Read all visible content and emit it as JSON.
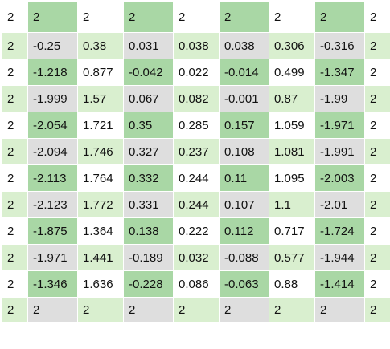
{
  "colors": {
    "white": "#ffffff",
    "light_gray": "#dedede",
    "light_green": "#d9efcf",
    "green": "#a9d7a5"
  },
  "grid": {
    "rows": [
      [
        "2",
        "2",
        "2",
        "2",
        "2",
        "2",
        "2",
        "2",
        "2"
      ],
      [
        "2",
        "-0.25",
        "0.38",
        "0.031",
        "0.038",
        "0.038",
        "0.306",
        "-0.316",
        "2"
      ],
      [
        "2",
        "-1.218",
        "0.877",
        "-0.042",
        "0.022",
        "-0.014",
        "0.499",
        "-1.347",
        "2"
      ],
      [
        "2",
        "-1.999",
        "1.57",
        "0.067",
        "0.082",
        "-0.001",
        "0.87",
        "-1.99",
        "2"
      ],
      [
        "2",
        "-2.054",
        "1.721",
        "0.35",
        "0.285",
        "0.157",
        "1.059",
        "-1.971",
        "2"
      ],
      [
        "2",
        "-2.094",
        "1.746",
        "0.327",
        "0.237",
        "0.108",
        "1.081",
        "-1.991",
        "2"
      ],
      [
        "2",
        "-2.113",
        "1.764",
        "0.332",
        "0.244",
        "0.11",
        "1.095",
        "-2.003",
        "2"
      ],
      [
        "2",
        "-2.123",
        "1.772",
        "0.331",
        "0.244",
        "0.107",
        "1.1",
        "-2.01",
        "2"
      ],
      [
        "2",
        "-1.875",
        "1.364",
        "0.138",
        "0.222",
        "0.112",
        "0.717",
        "-1.724",
        "2"
      ],
      [
        "2",
        "-1.971",
        "1.441",
        "-0.189",
        "0.032",
        "-0.088",
        "0.577",
        "-1.944",
        "2"
      ],
      [
        "2",
        "-1.346",
        "1.636",
        "-0.228",
        "0.086",
        "-0.063",
        "0.88",
        "-1.414",
        "2"
      ],
      [
        "2",
        "2",
        "2",
        "2",
        "2",
        "2",
        "2",
        "2",
        "2"
      ]
    ],
    "fills": [
      [
        "white",
        "green",
        "white",
        "green",
        "white",
        "green",
        "white",
        "green",
        "white"
      ],
      [
        "light_green",
        "light_gray",
        "light_green",
        "light_gray",
        "light_green",
        "light_gray",
        "light_green",
        "light_gray",
        "light_green"
      ],
      [
        "white",
        "green",
        "white",
        "green",
        "white",
        "green",
        "white",
        "green",
        "white"
      ],
      [
        "light_green",
        "light_gray",
        "light_green",
        "light_gray",
        "light_green",
        "light_gray",
        "light_green",
        "light_gray",
        "light_green"
      ],
      [
        "white",
        "green",
        "white",
        "green",
        "white",
        "green",
        "white",
        "green",
        "white"
      ],
      [
        "light_green",
        "light_gray",
        "light_green",
        "light_gray",
        "light_green",
        "light_gray",
        "light_green",
        "light_gray",
        "light_green"
      ],
      [
        "white",
        "green",
        "white",
        "green",
        "white",
        "green",
        "white",
        "green",
        "white"
      ],
      [
        "light_green",
        "light_gray",
        "light_green",
        "light_gray",
        "light_green",
        "light_gray",
        "light_green",
        "light_gray",
        "light_green"
      ],
      [
        "white",
        "green",
        "white",
        "green",
        "white",
        "green",
        "white",
        "green",
        "white"
      ],
      [
        "light_green",
        "light_gray",
        "light_green",
        "light_gray",
        "light_green",
        "light_gray",
        "light_green",
        "light_gray",
        "light_green"
      ],
      [
        "white",
        "green",
        "white",
        "green",
        "white",
        "green",
        "white",
        "green",
        "white"
      ],
      [
        "light_green",
        "light_gray",
        "light_green",
        "light_gray",
        "light_green",
        "light_gray",
        "light_green",
        "light_gray",
        "light_green"
      ]
    ]
  }
}
